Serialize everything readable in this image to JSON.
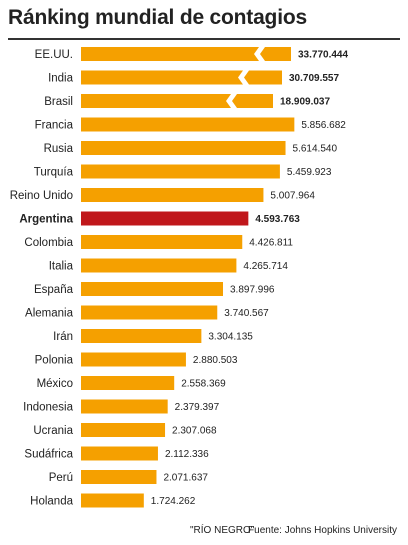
{
  "title": "Ránking mundial de contagios",
  "footer": {
    "credit": "\"RÍO NEGRO\"",
    "source": "Fuente: Johns Hopkins University"
  },
  "colors": {
    "bar": "#F5A000",
    "highlight": "#C0171B",
    "text": "#222222"
  },
  "chart_data": {
    "type": "bar",
    "orientation": "horizontal",
    "axis_break": true,
    "highlight": "Argentina",
    "categories": [
      "EE.UU.",
      "India",
      "Brasil",
      "Francia",
      "Rusia",
      "Turquía",
      "Reino Unido",
      "Argentina",
      "Colombia",
      "Italia",
      "España",
      "Alemania",
      "Irán",
      "Polonia",
      "México",
      "Indonesia",
      "Ucrania",
      "Sudáfrica",
      "Perú",
      "Holanda"
    ],
    "values": [
      33770444,
      30709557,
      18909037,
      5856682,
      5614540,
      5459923,
      5007964,
      4593763,
      4426811,
      4265714,
      3897996,
      3740567,
      3304135,
      2880503,
      2558369,
      2379397,
      2307068,
      2112336,
      2071637,
      1724262
    ],
    "labels": [
      "33.770.444",
      "30.709.557",
      "18.909.037",
      "5.856.682",
      "5.614.540",
      "5.459.923",
      "5.007.964",
      "4.593.763",
      "4.426.811",
      "4.265.714",
      "3.897.996",
      "3.740.567",
      "3.304.135",
      "2.880.503",
      "2.558.369",
      "2.379.397",
      "2.307.068",
      "2.112.336",
      "2.071.637",
      "1.724.262"
    ]
  }
}
